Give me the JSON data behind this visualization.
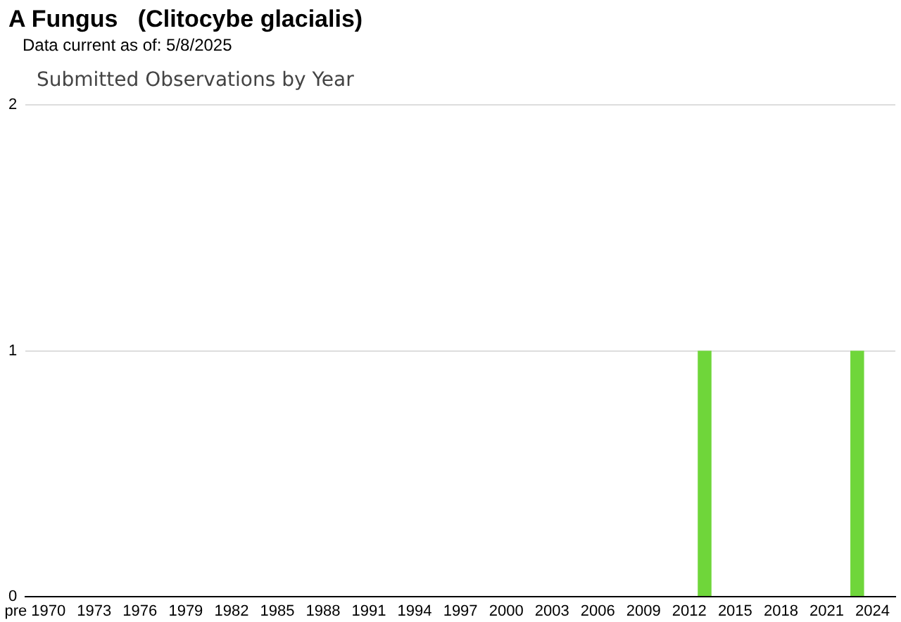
{
  "chart_data": {
    "type": "bar",
    "title": "A Fungus   (Clitocybe glacialis)",
    "subtitle": "Data current as of: 5/8/2025",
    "annotations": [
      "Submitted Observations by Year"
    ],
    "categories": [
      "pre",
      "1970",
      null,
      null,
      "1973",
      null,
      null,
      "1976",
      null,
      null,
      "1979",
      null,
      null,
      "1982",
      null,
      null,
      "1985",
      null,
      null,
      "1988",
      null,
      null,
      "1991",
      null,
      null,
      "1994",
      null,
      null,
      "1997",
      null,
      null,
      "2000",
      null,
      null,
      "2003",
      null,
      null,
      "2006",
      null,
      null,
      "2009",
      null,
      null,
      "2012",
      null,
      null,
      "2015",
      null,
      null,
      "2018",
      null,
      null,
      "2021",
      null,
      null,
      "2024",
      null
    ],
    "values": [
      0,
      0,
      0,
      0,
      0,
      0,
      0,
      0,
      0,
      0,
      0,
      0,
      0,
      0,
      0,
      0,
      0,
      0,
      0,
      0,
      0,
      0,
      0,
      0,
      0,
      0,
      0,
      0,
      0,
      0,
      0,
      0,
      0,
      0,
      0,
      0,
      0,
      0,
      0,
      0,
      0,
      0,
      0,
      0,
      1,
      0,
      0,
      0,
      0,
      0,
      0,
      0,
      0,
      0,
      1,
      0,
      0
    ],
    "color": "#6fd63a",
    "ylim": [
      0,
      2
    ],
    "yticks": [
      0,
      1,
      2
    ],
    "grid": "y"
  }
}
